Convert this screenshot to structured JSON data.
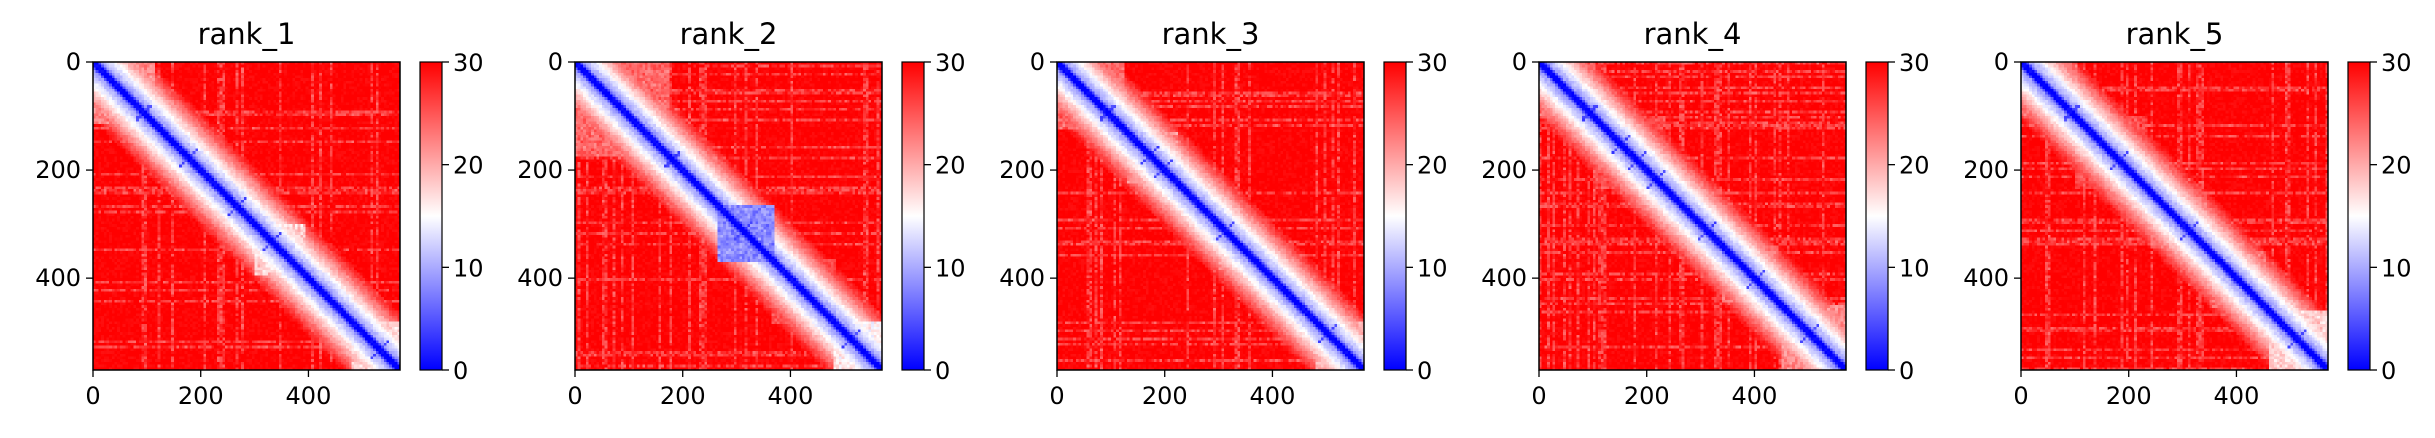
{
  "chart_data": [
    {
      "type": "heatmap",
      "title": "rank_1",
      "xticks": [
        0,
        200,
        400
      ],
      "yticks": [
        0,
        200,
        400
      ],
      "xlim": [
        0,
        570
      ],
      "ylim": [
        570,
        0
      ],
      "matrix_size": 570,
      "colorbar": {
        "ticks": [
          0,
          10,
          20,
          30
        ],
        "range": [
          0,
          30
        ],
        "colormap": "bwr"
      },
      "features": {
        "diagonal_value": 0,
        "background_value": 30,
        "blocks": [
          {
            "start": 0,
            "end": 110,
            "value": 20
          },
          {
            "start": 140,
            "end": 220,
            "value": 22
          },
          {
            "start": 235,
            "end": 300,
            "value": 20
          },
          {
            "start": 300,
            "end": 390,
            "value": 16
          },
          {
            "start": 395,
            "end": 470,
            "value": 20
          },
          {
            "start": 480,
            "end": 570,
            "value": 16
          }
        ],
        "crosses": [
          92,
          175,
          265,
          330,
          530
        ]
      }
    },
    {
      "type": "heatmap",
      "title": "rank_2",
      "xticks": [
        0,
        200,
        400
      ],
      "yticks": [
        0,
        200,
        400
      ],
      "xlim": [
        0,
        570
      ],
      "ylim": [
        570,
        0
      ],
      "matrix_size": 570,
      "colorbar": {
        "ticks": [
          0,
          10,
          20,
          30
        ],
        "range": [
          0,
          30
        ],
        "colormap": "bwr"
      },
      "features": {
        "diagonal_value": 0,
        "background_value": 30,
        "blocks": [
          {
            "start": 0,
            "end": 170,
            "value": 22
          },
          {
            "start": 170,
            "end": 260,
            "value": 22
          },
          {
            "start": 265,
            "end": 365,
            "value": 6
          },
          {
            "start": 365,
            "end": 480,
            "value": 24
          },
          {
            "start": 480,
            "end": 570,
            "value": 14
          }
        ],
        "crosses": [
          178,
          310,
          510
        ]
      }
    },
    {
      "type": "heatmap",
      "title": "rank_3",
      "xticks": [
        0,
        200,
        400
      ],
      "yticks": [
        0,
        200,
        400
      ],
      "xlim": [
        0,
        570
      ],
      "ylim": [
        570,
        0
      ],
      "matrix_size": 570,
      "colorbar": {
        "ticks": [
          0,
          10,
          20,
          30
        ],
        "range": [
          0,
          30
        ],
        "colormap": "bwr"
      },
      "features": {
        "diagonal_value": 0,
        "background_value": 30,
        "blocks": [
          {
            "start": 0,
            "end": 120,
            "value": 22
          },
          {
            "start": 130,
            "end": 220,
            "value": 20
          },
          {
            "start": 300,
            "end": 380,
            "value": 20
          },
          {
            "start": 400,
            "end": 480,
            "value": 22
          },
          {
            "start": 480,
            "end": 570,
            "value": 18
          }
        ],
        "crosses": [
          92,
          170,
          195,
          310,
          500
        ]
      }
    },
    {
      "type": "heatmap",
      "title": "rank_4",
      "xticks": [
        0,
        200,
        400
      ],
      "yticks": [
        0,
        200,
        400
      ],
      "xlim": [
        0,
        570
      ],
      "ylim": [
        570,
        0
      ],
      "matrix_size": 570,
      "colorbar": {
        "ticks": [
          0,
          10,
          20,
          30
        ],
        "range": [
          0,
          30
        ],
        "colormap": "bwr"
      },
      "features": {
        "diagonal_value": 0,
        "background_value": 30,
        "blocks": [
          {
            "start": 0,
            "end": 100,
            "value": 22
          },
          {
            "start": 100,
            "end": 230,
            "value": 24
          },
          {
            "start": 240,
            "end": 330,
            "value": 22
          },
          {
            "start": 340,
            "end": 440,
            "value": 22
          },
          {
            "start": 450,
            "end": 570,
            "value": 20
          }
        ],
        "crosses": [
          92,
          150,
          180,
          215,
          310,
          400,
          500
        ]
      }
    },
    {
      "type": "heatmap",
      "title": "rank_5",
      "xticks": [
        0,
        200,
        400
      ],
      "yticks": [
        0,
        200,
        400
      ],
      "xlim": [
        0,
        570
      ],
      "ylim": [
        570,
        0
      ],
      "matrix_size": 570,
      "colorbar": {
        "ticks": [
          0,
          10,
          20,
          30
        ],
        "range": [
          0,
          30
        ],
        "colormap": "bwr"
      },
      "features": {
        "diagonal_value": 0,
        "background_value": 30,
        "blocks": [
          {
            "start": 0,
            "end": 100,
            "value": 22
          },
          {
            "start": 100,
            "end": 230,
            "value": 24
          },
          {
            "start": 240,
            "end": 340,
            "value": 22
          },
          {
            "start": 350,
            "end": 450,
            "value": 22
          },
          {
            "start": 460,
            "end": 570,
            "value": 16
          }
        ],
        "crosses": [
          92,
          180,
          310,
          510
        ]
      }
    }
  ]
}
